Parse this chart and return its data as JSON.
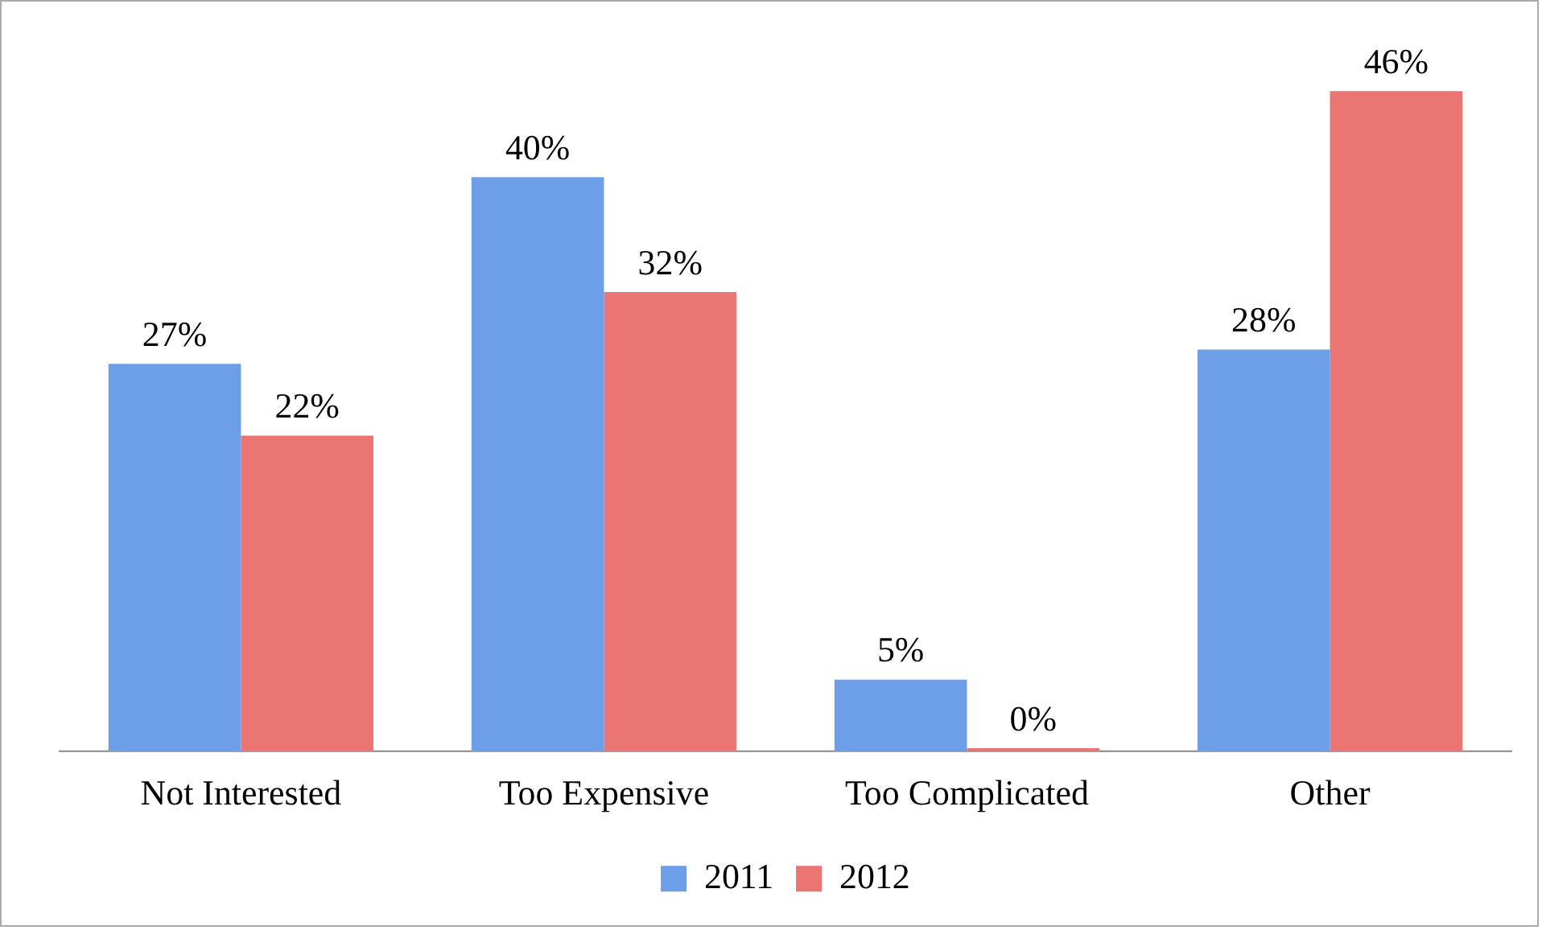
{
  "chart_data": {
    "type": "bar",
    "categories": [
      "Not Interested",
      "Too Expensive",
      "Too Complicated",
      "Other"
    ],
    "series": [
      {
        "name": "2011",
        "color": "#6d9fe8",
        "values": [
          27,
          40,
          5,
          28
        ],
        "value_labels": [
          "27%",
          "40%",
          "5%",
          "28%"
        ]
      },
      {
        "name": "2012",
        "color": "#ea7573",
        "values": [
          22,
          32,
          0,
          46
        ],
        "value_labels": [
          "22%",
          "32%",
          "0%",
          "46%"
        ]
      }
    ],
    "legend": "bottom",
    "grid": false
  }
}
